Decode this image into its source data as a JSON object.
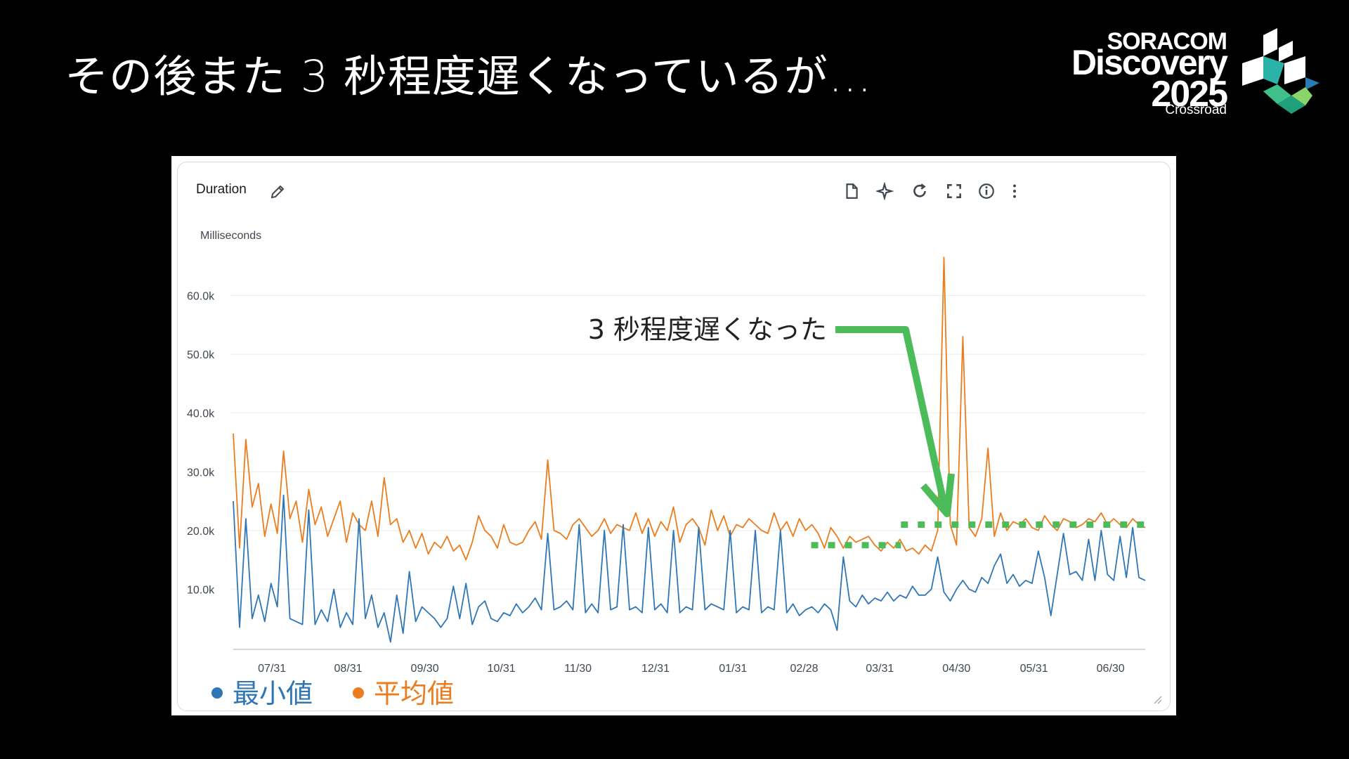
{
  "slide": {
    "title": "その後また 3 秒程度遅くなっているが…"
  },
  "logo": {
    "line1": "SORACOM",
    "line2": "Discovery",
    "line3": "2025",
    "line4": "Crossroad"
  },
  "widget": {
    "title": "Duration",
    "unit": "Milliseconds",
    "toolbar": [
      "document-icon",
      "sparkle-icon",
      "refresh-icon",
      "fullscreen-icon",
      "info-icon",
      "more-icon"
    ]
  },
  "annotation": {
    "text": "3 秒程度遅くなった",
    "color": "#4cbb5a"
  },
  "chart_data": {
    "type": "line",
    "ylabel": "Milliseconds",
    "ylim": [
      0,
      67000
    ],
    "yticks": [
      10000,
      20000,
      30000,
      40000,
      50000,
      60000
    ],
    "ytick_labels": [
      "10.0k",
      "20.0k",
      "30.0k",
      "40.0k",
      "50.0k",
      "60.0k"
    ],
    "xticks": [
      "07/31",
      "08/31",
      "09/30",
      "10/31",
      "11/30",
      "12/31",
      "01/31",
      "02/28",
      "03/31",
      "04/30",
      "05/31",
      "06/30"
    ],
    "grid": true,
    "legend": {
      "position": "bottom-left",
      "items": [
        "最小値",
        "平均値"
      ]
    },
    "series": [
      {
        "name": "平均値",
        "color": "#ec7d1e",
        "values": [
          36500,
          17000,
          35500,
          24000,
          28000,
          19000,
          24500,
          19500,
          33500,
          22000,
          25000,
          18000,
          27000,
          21000,
          24000,
          19000,
          22000,
          25000,
          18000,
          23000,
          21000,
          20000,
          25000,
          19000,
          29000,
          21000,
          22000,
          18000,
          20000,
          17000,
          19500,
          16000,
          18000,
          17000,
          19000,
          16500,
          17500,
          15000,
          18000,
          22500,
          20000,
          19000,
          17000,
          21000,
          18000,
          17500,
          18000,
          20000,
          21500,
          18500,
          32000,
          20000,
          19500,
          18500,
          21000,
          22000,
          20500,
          19000,
          20000,
          22000,
          19500,
          21000,
          20500,
          20000,
          23000,
          19500,
          22000,
          19000,
          21500,
          20000,
          24000,
          18000,
          21000,
          22000,
          20500,
          17500,
          23500,
          20000,
          22500,
          19000,
          21000,
          20500,
          22000,
          21000,
          20000,
          19500,
          23000,
          20000,
          21500,
          19000,
          22000,
          20000,
          21000,
          19500,
          17000,
          20500,
          19000,
          17000,
          19000,
          18000,
          18500,
          19000,
          17500,
          16500,
          18000,
          17000,
          18500,
          16500,
          17000,
          16000,
          17500,
          16500,
          20000,
          66500,
          21000,
          17500,
          53000,
          20500,
          19000,
          22000,
          34000,
          19000,
          23000,
          20000,
          21500,
          21000,
          22000,
          20500,
          20000,
          22500,
          21000,
          20000,
          22000,
          21500,
          20500,
          21000,
          22000,
          21500,
          23000,
          21000,
          22000,
          21000,
          20500,
          22000,
          21000,
          20500
        ]
      },
      {
        "name": "最小値",
        "color": "#2f76b5",
        "values": [
          25000,
          3500,
          22000,
          5000,
          9000,
          4500,
          11000,
          7000,
          26000,
          5000,
          4500,
          4000,
          23500,
          4000,
          6500,
          4500,
          10000,
          3500,
          6000,
          4000,
          22000,
          5000,
          9000,
          3500,
          6000,
          1000,
          9000,
          2500,
          13000,
          4500,
          7000,
          6000,
          5000,
          3500,
          5000,
          10500,
          5000,
          11000,
          4000,
          7000,
          8000,
          5000,
          4500,
          6000,
          5500,
          7500,
          6000,
          7000,
          8500,
          6500,
          19500,
          6500,
          7000,
          8000,
          6500,
          21000,
          6000,
          7500,
          6000,
          20000,
          6500,
          7000,
          21000,
          6500,
          7000,
          6000,
          20500,
          6500,
          7500,
          6000,
          20000,
          6000,
          7000,
          6500,
          20500,
          6500,
          7500,
          7000,
          6500,
          20000,
          6000,
          7000,
          6500,
          20000,
          6000,
          7000,
          6500,
          20000,
          6000,
          7500,
          5500,
          6500,
          7000,
          6000,
          7500,
          6500,
          3000,
          15500,
          8000,
          7000,
          9000,
          7500,
          8500,
          8000,
          9500,
          8000,
          9000,
          8500,
          10500,
          9000,
          9000,
          10000,
          15500,
          9500,
          8000,
          10000,
          11500,
          10000,
          9500,
          12000,
          11000,
          14000,
          16000,
          11000,
          12500,
          10500,
          11500,
          11000,
          16500,
          12000,
          5500,
          12500,
          19500,
          12500,
          13000,
          11500,
          18500,
          11500,
          20000,
          12500,
          11500,
          19000,
          12000,
          20500,
          12000,
          11500
        ]
      }
    ],
    "annotations": [
      {
        "type": "level",
        "y": 17500,
        "x_from": "02/28",
        "x_to": "04/10"
      },
      {
        "type": "level",
        "y": 21000,
        "x_from": "04/10",
        "x_to": "07/05"
      }
    ]
  }
}
